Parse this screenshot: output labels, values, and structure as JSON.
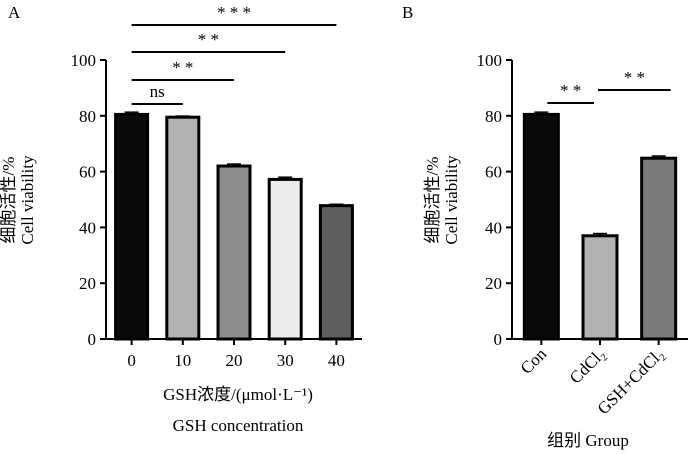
{
  "chart_data": [
    {
      "panel_label": "A",
      "type": "bar",
      "categories": [
        "0",
        "10",
        "20",
        "30",
        "40"
      ],
      "values": [
        80.5,
        79.5,
        62,
        57.2,
        47.8
      ],
      "errors": [
        0.8,
        0.4,
        0.7,
        0.8,
        0.5
      ],
      "bar_colors": [
        "#0a0a0a",
        "#b2b2b2",
        "#8c8c8c",
        "#ececec",
        "#5e5e5e"
      ],
      "ylabel_cn": "细胞活性/%",
      "ylabel_en": "Cell viability",
      "xlabel_cn": "GSH浓度/(μmol·L⁻¹)",
      "xlabel_en": "GSH concentration",
      "ylim": [
        0,
        100
      ],
      "yticks": [
        "0",
        "20",
        "40",
        "60",
        "80",
        "100"
      ],
      "significance": [
        {
          "label": "ns",
          "from": 0,
          "to": 1
        },
        {
          "label": "* *",
          "from": 0,
          "to": 2
        },
        {
          "label": "* *",
          "from": 0,
          "to": 3
        },
        {
          "label": "* * *",
          "from": 0,
          "to": 4
        }
      ]
    },
    {
      "panel_label": "B",
      "type": "bar",
      "categories": [
        "Con",
        "CdCl₂",
        "GSH+CdCl₂"
      ],
      "values": [
        80.5,
        37,
        64.8
      ],
      "errors": [
        0.8,
        0.8,
        0.8
      ],
      "bar_colors": [
        "#0a0a0a",
        "#b2b2b2",
        "#7a7a7a"
      ],
      "ylabel_cn": "细胞活性/%",
      "ylabel_en": "Cell viability",
      "xlabel": "组别 Group",
      "ylim": [
        0,
        100
      ],
      "yticks": [
        "0",
        "20",
        "40",
        "60",
        "80",
        "100"
      ],
      "significance": [
        {
          "label": "* *",
          "from": 0,
          "to": 1
        },
        {
          "label": "* *",
          "from": 1,
          "to": 2
        }
      ]
    }
  ]
}
